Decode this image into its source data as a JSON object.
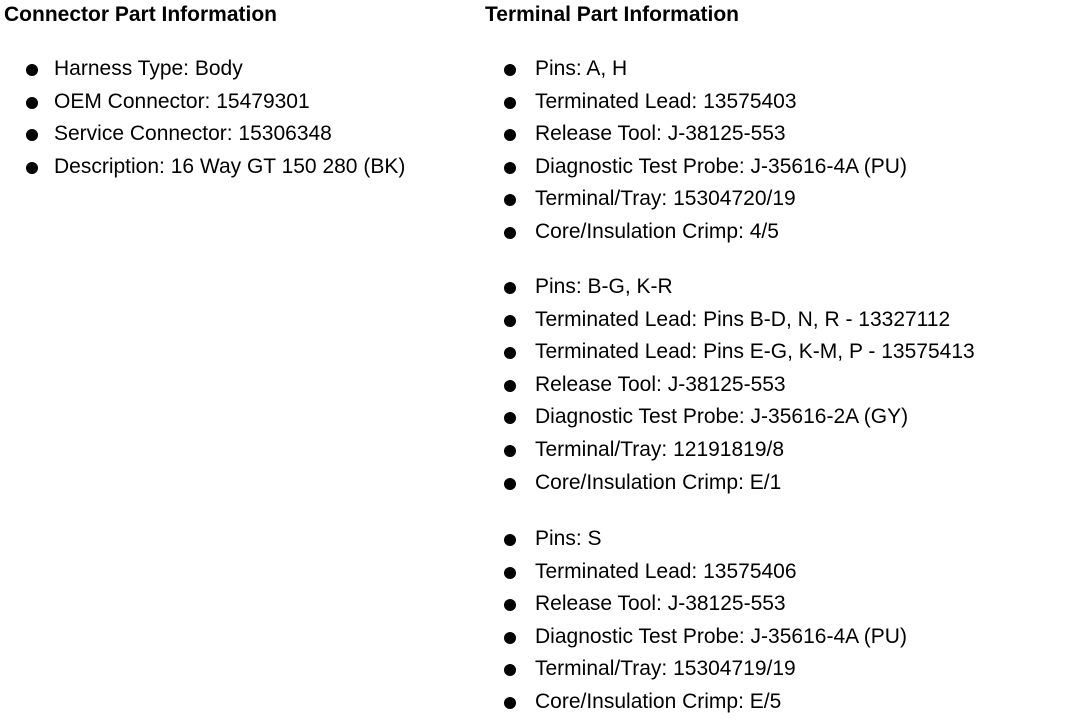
{
  "connector": {
    "heading": "Connector Part Information",
    "items": [
      "Harness Type: Body",
      "OEM Connector: 15479301",
      "Service Connector: 15306348",
      "Description: 16 Way GT 150 280 (BK)"
    ]
  },
  "terminal": {
    "heading": "Terminal Part Information",
    "groups": [
      {
        "items": [
          "Pins: A, H",
          "Terminated Lead: 13575403",
          "Release Tool: J-38125-553",
          "Diagnostic Test Probe: J-35616-4A (PU)",
          "Terminal/Tray: 15304720/19",
          "Core/Insulation Crimp: 4/5"
        ]
      },
      {
        "items": [
          "Pins: B-G, K-R",
          "Terminated Lead: Pins B-D, N, R - 13327112",
          "Terminated Lead: Pins E-G, K-M, P - 13575413",
          "Release Tool: J-38125-553",
          "Diagnostic Test Probe: J-35616-2A (GY)",
          "Terminal/Tray: 12191819/8",
          "Core/Insulation Crimp: E/1"
        ]
      },
      {
        "items": [
          "Pins: S",
          "Terminated Lead: 13575406",
          "Release Tool: J-38125-553",
          "Diagnostic Test Probe: J-35616-4A (PU)",
          "Terminal/Tray: 15304719/19",
          "Core/Insulation Crimp: E/5"
        ]
      }
    ]
  }
}
